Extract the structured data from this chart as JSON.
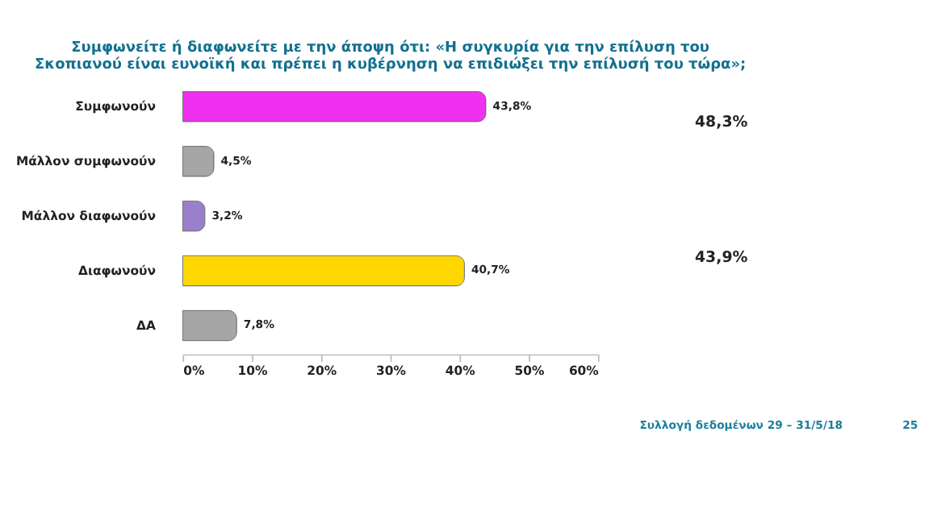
{
  "chart_data": {
    "type": "bar",
    "orientation": "horizontal",
    "title": "Συμφωνείτε ή διαφωνείτε με την άποψη ότι: «Η συγκυρία για την επίλυση του Σκοπιανού είναι ευνοϊκή και πρέπει η κυβέρνηση να επιδιώξει την επίλυσή του τώρα»;",
    "categories": [
      "Συμφωνούν",
      "Μάλλον συμφωνούν",
      "Μάλλον διαφωνούν",
      "Διαφωνούν",
      "ΔΑ"
    ],
    "values": [
      43.8,
      4.5,
      3.2,
      40.7,
      7.8
    ],
    "colors": [
      "#f030f0",
      "#a6a6a6",
      "#9a7fcc",
      "#ffd700",
      "#a6a6a6"
    ],
    "value_labels": [
      "43,8%",
      "4,5%",
      "3,2%",
      "40,7%",
      "7,8%"
    ],
    "xlim": [
      0,
      60
    ],
    "xticks": [
      {
        "value": 0,
        "label": "0%"
      },
      {
        "value": 10,
        "label": "10%"
      },
      {
        "value": 20,
        "label": "20%"
      },
      {
        "value": 30,
        "label": "30%"
      },
      {
        "value": 40,
        "label": "40%"
      },
      {
        "value": 50,
        "label": "50%"
      },
      {
        "value": 60,
        "label": "60%"
      }
    ],
    "grid": false,
    "annotations": [
      "48,3%",
      "43,9%",
      "Συλλογή δεδομένων 29 – 31/5/18",
      "25"
    ]
  }
}
